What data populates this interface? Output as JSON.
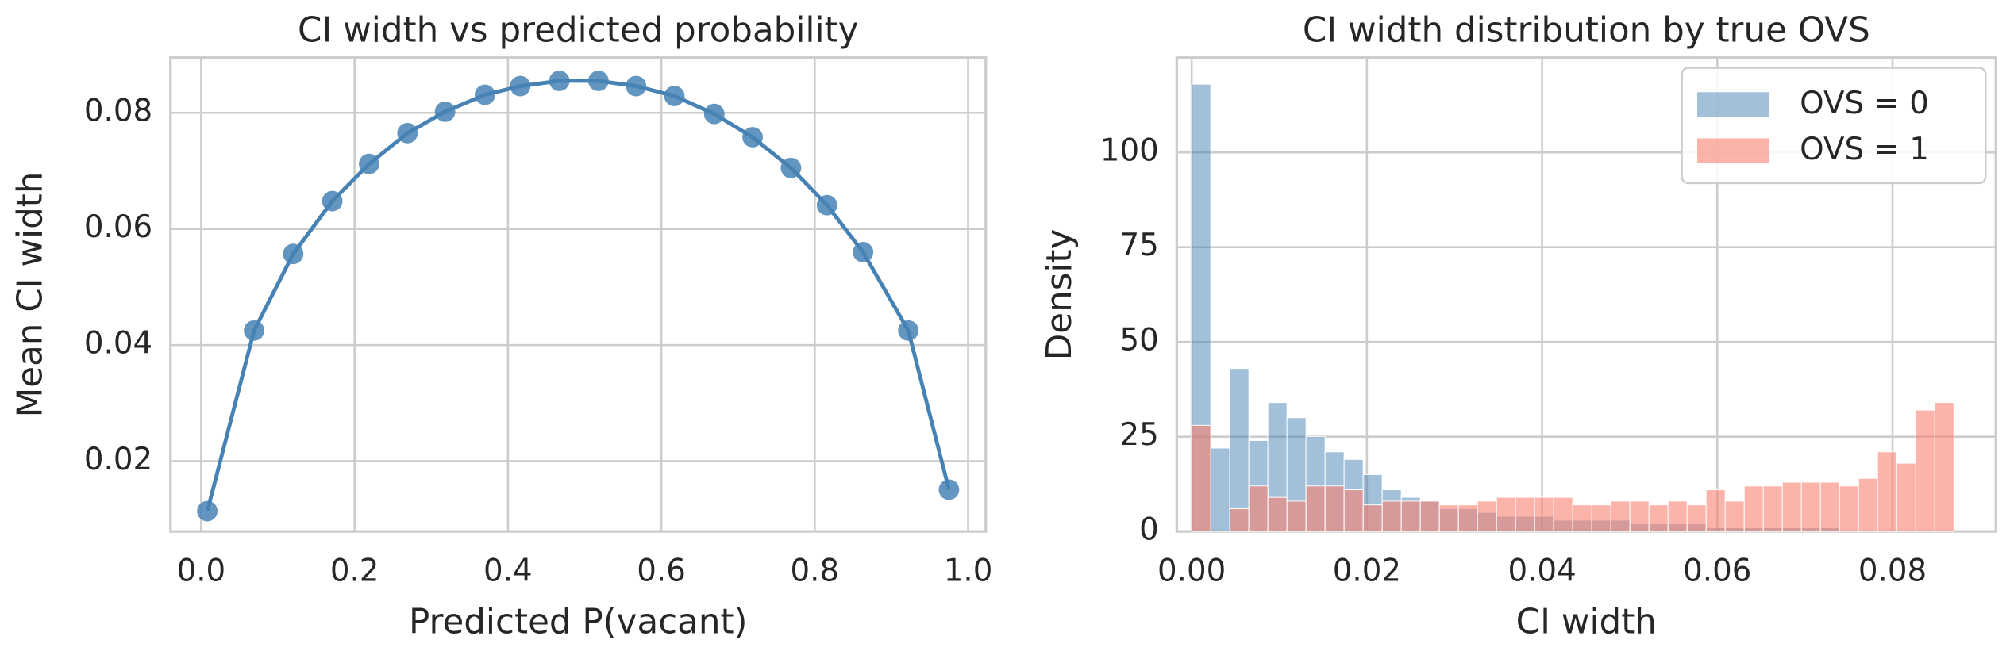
{
  "chart_data": [
    {
      "type": "line",
      "title": "CI width vs predicted probability",
      "xlabel": "Predicted P(vacant)",
      "ylabel": "Mean CI width",
      "x": [
        0.008,
        0.069,
        0.12,
        0.171,
        0.219,
        0.269,
        0.318,
        0.37,
        0.416,
        0.467,
        0.518,
        0.567,
        0.617,
        0.669,
        0.719,
        0.769,
        0.816,
        0.863,
        0.922,
        0.975
      ],
      "y": [
        0.0114,
        0.0425,
        0.0557,
        0.0648,
        0.0712,
        0.0765,
        0.0802,
        0.0831,
        0.0846,
        0.0855,
        0.0855,
        0.0846,
        0.0829,
        0.0798,
        0.0758,
        0.0705,
        0.0641,
        0.056,
        0.0425,
        0.0151
      ],
      "color": "#4682b4",
      "markers": true,
      "grid": true,
      "xlim": [
        -0.04,
        1.023
      ],
      "ylim": [
        0.0079,
        0.0895
      ],
      "xticks": [
        {
          "value": 0,
          "label": "0.0"
        },
        {
          "value": 0.2,
          "label": "0.2"
        },
        {
          "value": 0.4,
          "label": "0.4"
        },
        {
          "value": 0.6,
          "label": "0.6"
        },
        {
          "value": 0.8,
          "label": "0.8"
        },
        {
          "value": 1,
          "label": "1.0"
        }
      ],
      "yticks": [
        0.02,
        0.04,
        0.06,
        0.08
      ]
    },
    {
      "type": "histogram",
      "title": "CI width distribution by true OVS",
      "xlabel": "CI width",
      "ylabel": "Density",
      "bins": [
        0,
        0.002175,
        0.00435,
        0.006525,
        0.0087,
        0.010875,
        0.01305,
        0.015225,
        0.0174,
        0.019575,
        0.02175,
        0.023925,
        0.0261,
        0.028275,
        0.03045,
        0.032625,
        0.0348,
        0.036975,
        0.03915,
        0.041325,
        0.0435,
        0.045675,
        0.04785,
        0.050025,
        0.0522,
        0.054375,
        0.05655,
        0.058725,
        0.0609,
        0.063075,
        0.06525,
        0.067425,
        0.0696,
        0.071775,
        0.07395,
        0.076125,
        0.0783,
        0.080475,
        0.08265,
        0.084825,
        0.087
      ],
      "series": [
        {
          "name": "OVS = 0",
          "color": "#4682b4",
          "opacity": 0.5,
          "values": [
            118,
            22,
            43,
            24,
            34,
            30,
            25,
            21,
            19,
            15,
            11,
            9,
            8,
            6,
            6,
            5,
            4,
            4,
            4,
            3,
            3,
            3,
            3,
            2,
            2,
            2,
            2,
            1,
            1,
            1,
            1,
            1,
            1,
            1,
            0,
            0,
            0,
            0,
            0,
            0
          ]
        },
        {
          "name": "OVS = 1",
          "color": "#fa8072",
          "opacity": 0.6,
          "values": [
            28,
            0,
            6,
            12,
            9,
            8,
            12,
            12,
            11,
            7,
            8,
            8,
            8,
            7,
            7,
            8,
            9,
            9,
            9,
            9,
            7,
            7,
            8,
            8,
            7,
            8,
            7,
            11,
            8,
            12,
            12,
            13,
            13,
            13,
            12,
            14,
            21,
            18,
            32,
            34
          ]
        }
      ],
      "grid": true,
      "legend": "upper right",
      "xlim": [
        -0.0017,
        0.0918
      ],
      "ylim": [
        0,
        125
      ],
      "xticks": [
        {
          "value": 0,
          "label": "0.00"
        },
        {
          "value": 0.02,
          "label": "0.02"
        },
        {
          "value": 0.04,
          "label": "0.04"
        },
        {
          "value": 0.06,
          "label": "0.06"
        },
        {
          "value": 0.08,
          "label": "0.08"
        }
      ],
      "yticks": [
        0,
        25,
        50,
        75,
        100
      ]
    }
  ]
}
